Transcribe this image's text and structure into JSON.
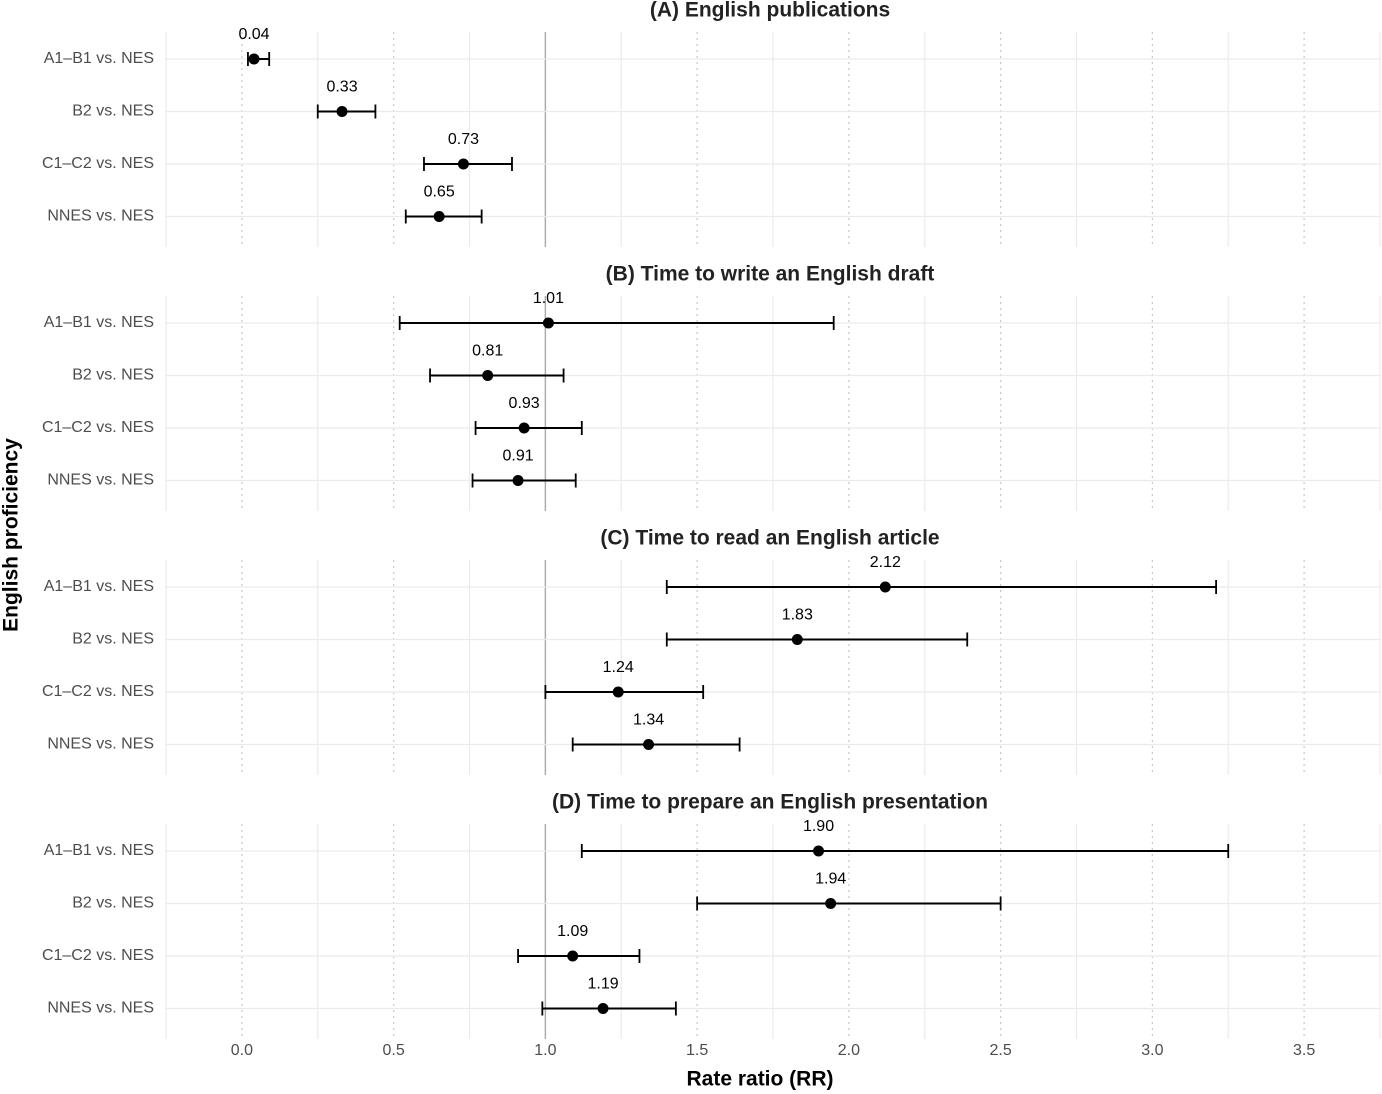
{
  "xlabel": "Rate ratio (RR)",
  "ylabel": "English proficiency",
  "chart_data": [
    {
      "type": "forest",
      "title": "(A) English publications",
      "categories": [
        "A1–B1 vs. NES",
        "B2 vs. NES",
        "C1–C2 vs. NES",
        "NNES vs. NES"
      ],
      "values": [
        0.04,
        0.33,
        0.73,
        0.65
      ],
      "value_labels": [
        "0.04",
        "0.33",
        "0.73",
        "0.65"
      ],
      "lower": [
        0.02,
        0.25,
        0.6,
        0.54
      ],
      "upper": [
        0.09,
        0.44,
        0.89,
        0.79
      ],
      "color": "#000000",
      "xlim": [
        -0.25,
        3.75
      ],
      "xticks": [
        {
          "value": 0,
          "label": "0.0"
        },
        0.5,
        {
          "value": 1,
          "label": "1.0"
        },
        1.5,
        {
          "value": 2,
          "label": "2.0"
        },
        2.5,
        {
          "value": 3,
          "label": "3.0"
        },
        3.5
      ],
      "minor_xticks": [
        -0.25,
        0.25,
        0.75,
        1.25,
        1.75,
        2.25,
        2.75,
        3.25,
        3.75
      ],
      "reference_line": 1,
      "grid": true
    },
    {
      "type": "forest",
      "title": "(B) Time to write an English draft",
      "categories": [
        "A1–B1 vs. NES",
        "B2 vs. NES",
        "C1–C2 vs. NES",
        "NNES vs. NES"
      ],
      "values": [
        1.01,
        0.81,
        0.93,
        0.91
      ],
      "value_labels": [
        "1.01",
        "0.81",
        "0.93",
        "0.91"
      ],
      "lower": [
        0.52,
        0.62,
        0.77,
        0.76
      ],
      "upper": [
        1.95,
        1.06,
        1.12,
        1.1
      ],
      "color": "#000000",
      "xlim": [
        -0.25,
        3.75
      ],
      "xticks": [
        {
          "value": 0,
          "label": "0.0"
        },
        0.5,
        {
          "value": 1,
          "label": "1.0"
        },
        1.5,
        {
          "value": 2,
          "label": "2.0"
        },
        2.5,
        {
          "value": 3,
          "label": "3.0"
        },
        3.5
      ],
      "minor_xticks": [
        -0.25,
        0.25,
        0.75,
        1.25,
        1.75,
        2.25,
        2.75,
        3.25,
        3.75
      ],
      "reference_line": 1,
      "grid": true
    },
    {
      "type": "forest",
      "title": "(C) Time to read an English article",
      "categories": [
        "A1–B1 vs. NES",
        "B2 vs. NES",
        "C1–C2 vs. NES",
        "NNES vs. NES"
      ],
      "values": [
        2.12,
        1.83,
        1.24,
        1.34
      ],
      "value_labels": [
        "2.12",
        "1.83",
        "1.24",
        "1.34"
      ],
      "lower": [
        1.4,
        1.4,
        1.0,
        1.09
      ],
      "upper": [
        3.21,
        2.39,
        1.52,
        1.64
      ],
      "color": "#000000",
      "xlim": [
        -0.25,
        3.75
      ],
      "xticks": [
        {
          "value": 0,
          "label": "0.0"
        },
        0.5,
        {
          "value": 1,
          "label": "1.0"
        },
        1.5,
        {
          "value": 2,
          "label": "2.0"
        },
        2.5,
        {
          "value": 3,
          "label": "3.0"
        },
        3.5
      ],
      "minor_xticks": [
        -0.25,
        0.25,
        0.75,
        1.25,
        1.75,
        2.25,
        2.75,
        3.25,
        3.75
      ],
      "reference_line": 1,
      "grid": true
    },
    {
      "type": "forest",
      "title": "(D) Time to prepare an English presentation",
      "categories": [
        "A1–B1 vs. NES",
        "B2 vs. NES",
        "C1–C2 vs. NES",
        "NNES vs. NES"
      ],
      "values": [
        1.9,
        1.94,
        1.09,
        1.19
      ],
      "value_labels": [
        "1.90",
        "1.94",
        "1.09",
        "1.19"
      ],
      "lower": [
        1.12,
        1.5,
        0.91,
        0.99
      ],
      "upper": [
        3.25,
        2.5,
        1.31,
        1.43
      ],
      "color": "#000000",
      "xlim": [
        -0.25,
        3.75
      ],
      "xticks": [
        {
          "value": 0,
          "label": "0.0"
        },
        0.5,
        {
          "value": 1,
          "label": "1.0"
        },
        1.5,
        {
          "value": 2,
          "label": "2.0"
        },
        2.5,
        {
          "value": 3,
          "label": "3.0"
        },
        3.5
      ],
      "minor_xticks": [
        -0.25,
        0.25,
        0.75,
        1.25,
        1.75,
        2.25,
        2.75,
        3.25,
        3.75
      ],
      "reference_line": 1,
      "grid": true
    }
  ]
}
